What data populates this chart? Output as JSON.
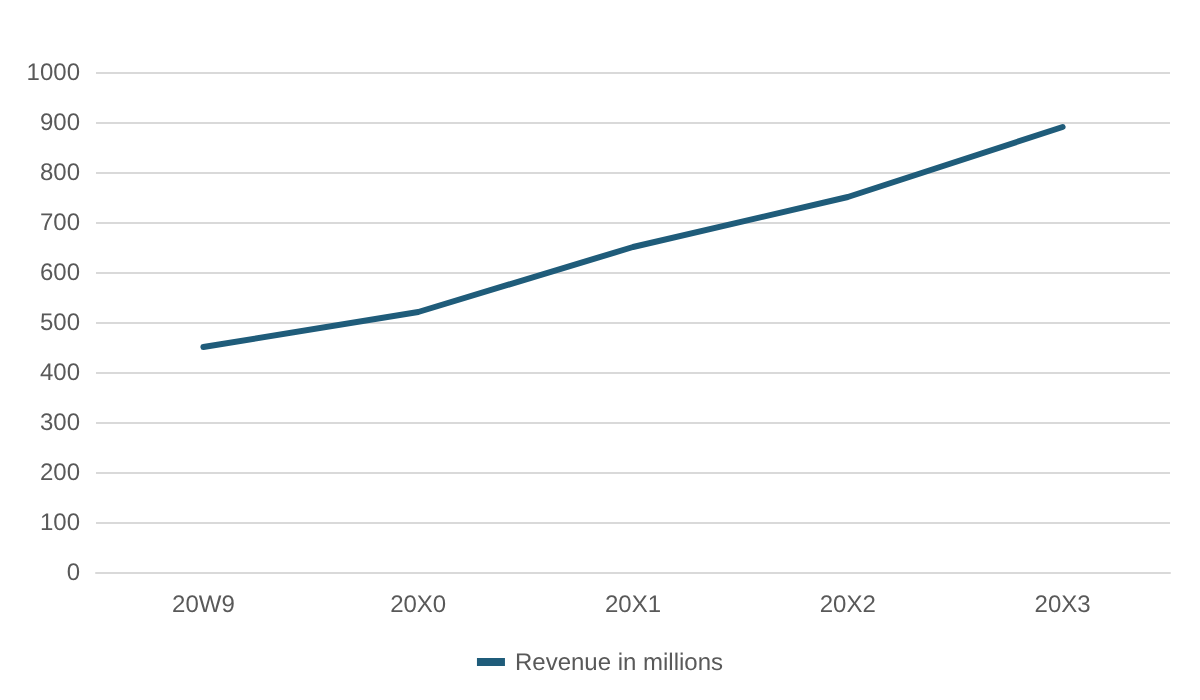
{
  "chart_data": {
    "type": "line",
    "categories": [
      "20W9",
      "20X0",
      "20X1",
      "20X2",
      "20X3"
    ],
    "series": [
      {
        "name": "Revenue in millions",
        "color": "#1f5c7a",
        "values": [
          450,
          520,
          650,
          750,
          890
        ]
      }
    ],
    "ylim": [
      0,
      1000
    ],
    "yticks": [
      0,
      100,
      200,
      300,
      400,
      500,
      600,
      700,
      800,
      900,
      1000
    ],
    "grid": "y",
    "legend": "bottom",
    "marker": "none",
    "line_style": "solid"
  }
}
